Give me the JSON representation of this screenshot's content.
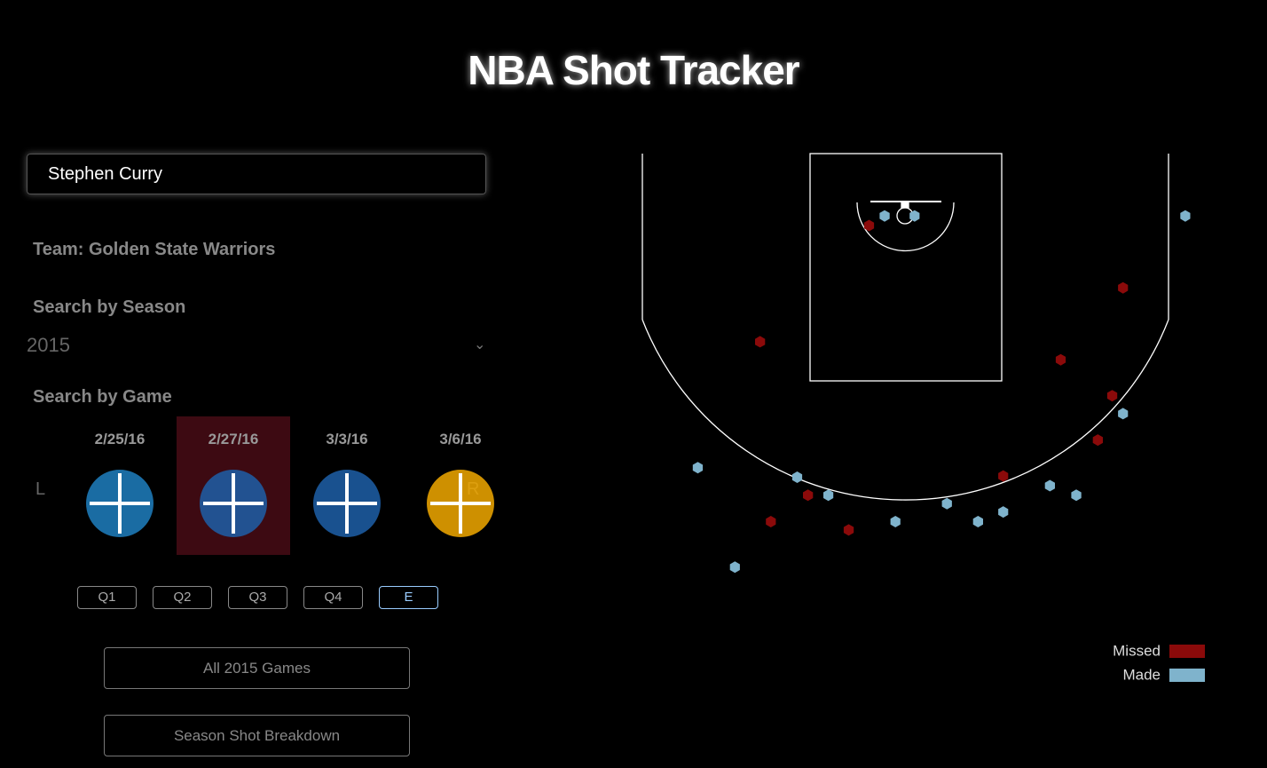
{
  "header": {
    "title": "NBA Shot Tracker"
  },
  "search": {
    "player": "Stephen Curry",
    "team": "Team: Golden State Warriors",
    "season_label": "Search by Season",
    "season": "2015",
    "game_label": "Search by Game",
    "nav_left": "L",
    "nav_right": "R"
  },
  "games": [
    {
      "date": "2/25/16",
      "logo_color": "#1e7fc0"
    },
    {
      "date": "2/27/16",
      "logo_color": "#1d5fa8"
    },
    {
      "date": "3/3/16",
      "logo_color": "#1d5fa8"
    },
    {
      "date": "3/6/16",
      "logo_color": "#f2a900"
    }
  ],
  "selected_game": 1,
  "quarters": [
    "Q1",
    "Q2",
    "Q3",
    "Q4",
    "E"
  ],
  "active_quarter": 4,
  "buttons": [
    "All 2015 Games",
    "Season Shot Breakdown"
  ],
  "chart_data": {
    "type": "scatter",
    "xlim": [
      -25,
      25
    ],
    "ylim": [
      -5.2,
      48.8
    ],
    "series": [
      {
        "name": "Missed",
        "color": "#8b0a0a",
        "x": [
          -3.0,
          18.2,
          -12.1,
          13.0,
          17.3,
          16.1,
          8.2,
          -8.1,
          -11.2,
          -4.7
        ],
        "values": [
          0.8,
          6.0,
          10.5,
          12.0,
          15.0,
          18.7,
          21.7,
          23.3,
          25.5,
          26.2
        ]
      },
      {
        "name": "Made",
        "color": "#7fb3cc",
        "x": [
          -1.7,
          0.8,
          23.4,
          18.2,
          -17.3,
          -9.0,
          -6.4,
          3.5,
          8.2,
          6.1,
          -0.8,
          12.1,
          14.3,
          -14.2
        ],
        "values": [
          0,
          0,
          0,
          16.5,
          21.0,
          21.8,
          23.3,
          24.0,
          24.7,
          25.5,
          25.5,
          22.5,
          23.3,
          29.3
        ]
      }
    ]
  }
}
